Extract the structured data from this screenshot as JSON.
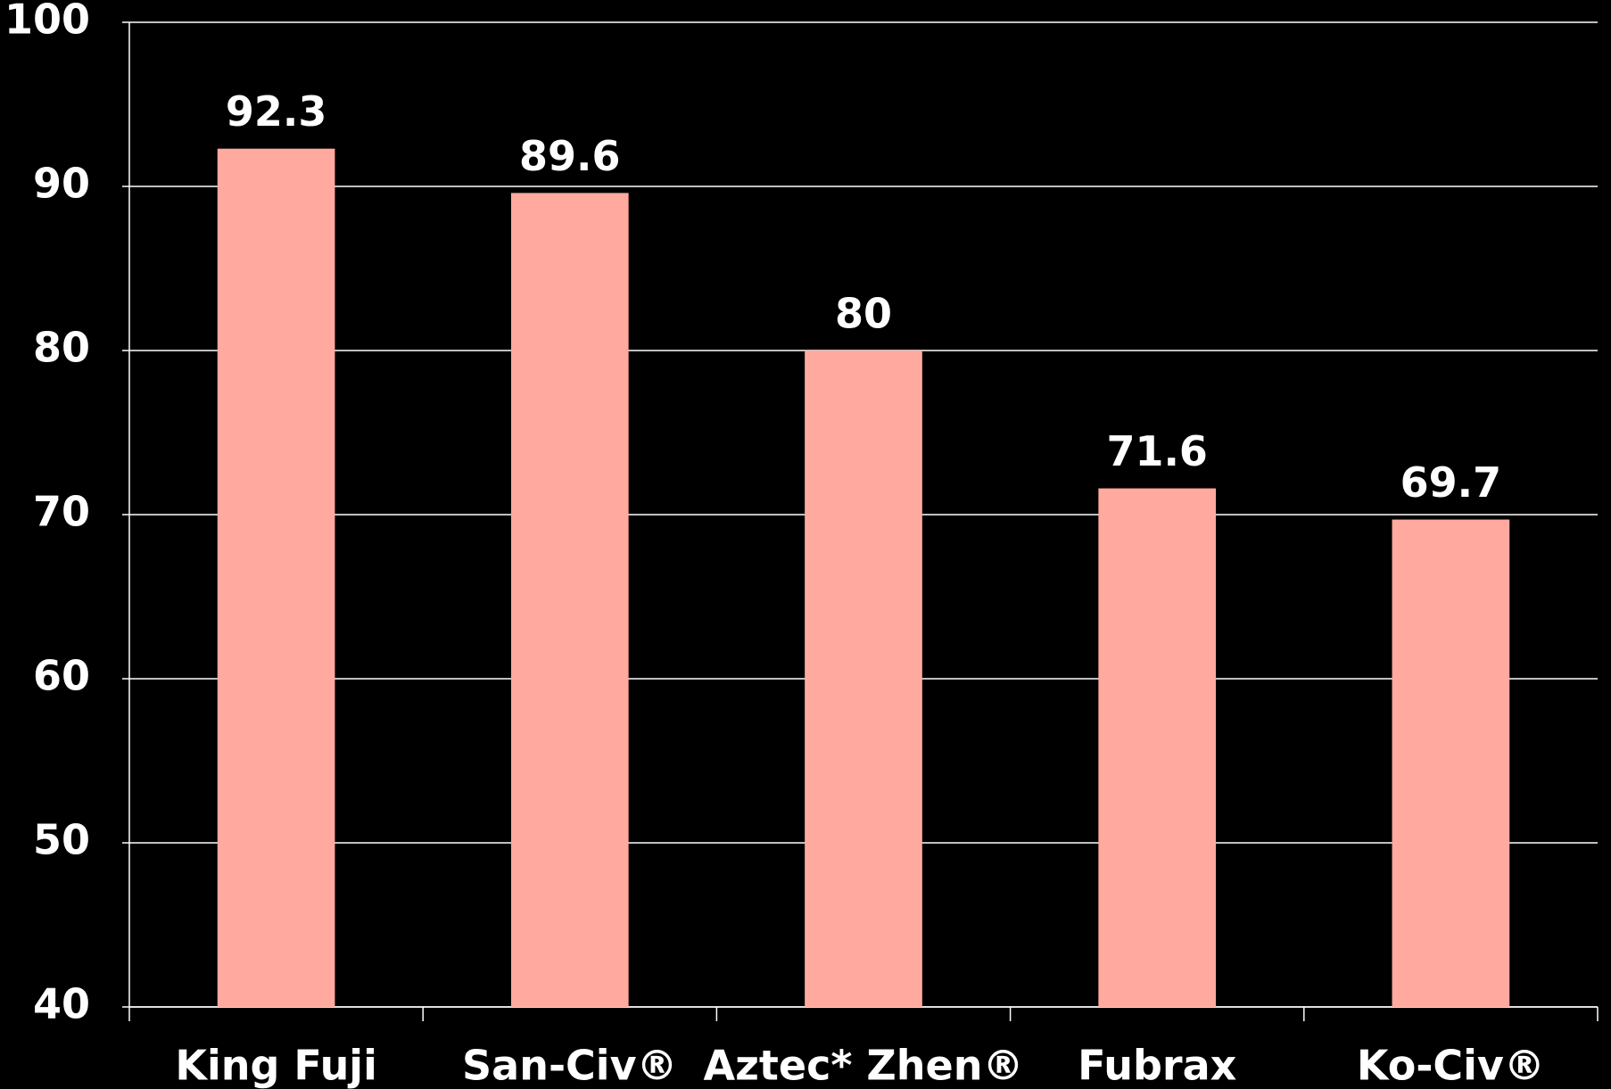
{
  "chart_data": {
    "type": "bar",
    "categories": [
      "King Fuji",
      "San-Civ®",
      "Aztec* Zhen®",
      "Fubrax",
      "Ko-Civ®"
    ],
    "values": [
      92.3,
      89.6,
      80,
      71.6,
      69.7
    ],
    "color": "#ffa99f",
    "ylim": [
      40,
      100
    ],
    "yticks": [
      40,
      50,
      60,
      70,
      80,
      90,
      100
    ],
    "grid": true
  }
}
